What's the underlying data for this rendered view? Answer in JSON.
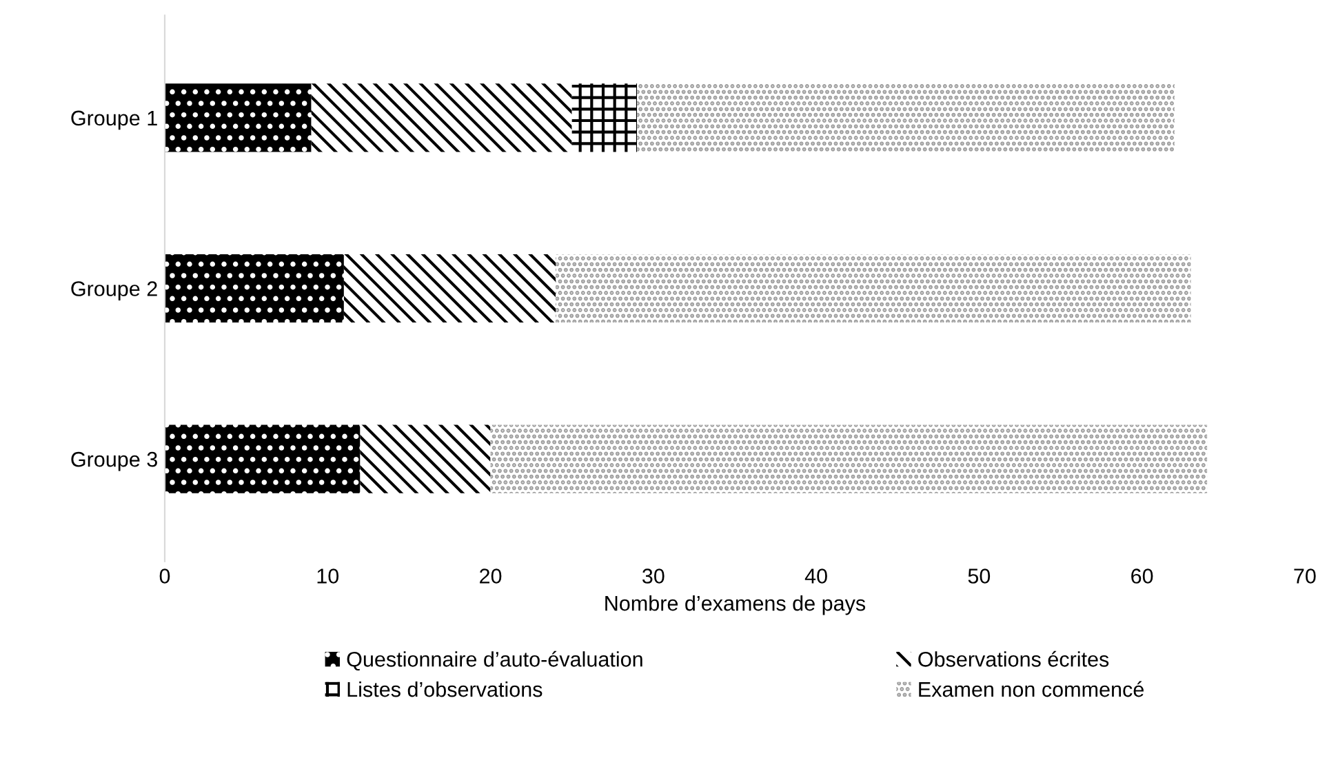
{
  "chart_data": {
    "type": "bar",
    "orientation": "horizontal",
    "stacked": true,
    "xlabel": "Nombre d’examens de pays",
    "categories": [
      "Groupe 1",
      "Groupe 2",
      "Groupe 3"
    ],
    "series": [
      {
        "name": "Questionnaire d’auto-évaluation",
        "color": "#000000",
        "values": [
          9,
          11,
          12
        ]
      },
      {
        "name": "Observations écrites",
        "color": "#ffffff",
        "values": [
          16,
          13,
          8
        ]
      },
      {
        "name": "Listes d’observations",
        "color": "#ffffff",
        "values": [
          4,
          0,
          0
        ]
      },
      {
        "name": "Examen non commencé",
        "color": "#ffffff",
        "values": [
          33,
          39,
          44
        ]
      }
    ],
    "xlim": [
      0,
      70
    ],
    "xticks": [
      0,
      10,
      20,
      30,
      40,
      50,
      60,
      70
    ],
    "grid": false,
    "legend": "bottom"
  }
}
